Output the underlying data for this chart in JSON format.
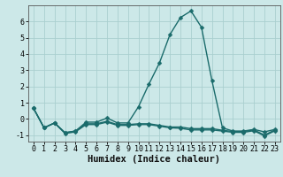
{
  "xlabel": "Humidex (Indice chaleur)",
  "bg_color": "#cce8e8",
  "line_color": "#1a6b6b",
  "grid_color": "#aacfcf",
  "xlim": [
    -0.5,
    23.5
  ],
  "ylim": [
    -1.4,
    7.0
  ],
  "yticks": [
    -1,
    0,
    1,
    2,
    3,
    4,
    5,
    6
  ],
  "xticks": [
    0,
    1,
    2,
    3,
    4,
    5,
    6,
    7,
    8,
    9,
    10,
    11,
    12,
    13,
    14,
    15,
    16,
    17,
    18,
    19,
    20,
    21,
    22,
    23
  ],
  "curves": [
    {
      "x": [
        0,
        1,
        2,
        3,
        4,
        5,
        6,
        7,
        8,
        9,
        10,
        11,
        12,
        13,
        14,
        15,
        16,
        17,
        18,
        19,
        20,
        21,
        22,
        23
      ],
      "y": [
        0.65,
        -0.55,
        -0.25,
        -0.85,
        -0.75,
        -0.2,
        -0.2,
        0.05,
        -0.25,
        -0.25,
        0.75,
        2.15,
        3.45,
        5.2,
        6.25,
        6.65,
        5.65,
        2.35,
        -0.55,
        -0.75,
        -0.75,
        -0.65,
        -0.8,
        -0.65
      ]
    },
    {
      "x": [
        0,
        1,
        2,
        3,
        4,
        5,
        6,
        7,
        8,
        9,
        10,
        11,
        12,
        13,
        14,
        15,
        16,
        17,
        18,
        19,
        20,
        21,
        22,
        23
      ],
      "y": [
        0.65,
        -0.55,
        -0.25,
        -0.85,
        -0.75,
        -0.3,
        -0.3,
        -0.15,
        -0.35,
        -0.35,
        -0.3,
        -0.3,
        -0.4,
        -0.5,
        -0.5,
        -0.6,
        -0.6,
        -0.6,
        -0.7,
        -0.78,
        -0.78,
        -0.68,
        -1.0,
        -0.68
      ]
    },
    {
      "x": [
        0,
        1,
        2,
        3,
        4,
        5,
        6,
        7,
        8,
        9,
        10,
        11,
        12,
        13,
        14,
        15,
        16,
        17,
        18,
        19,
        20,
        21,
        22,
        23
      ],
      "y": [
        0.65,
        -0.55,
        -0.25,
        -0.9,
        -0.8,
        -0.35,
        -0.35,
        -0.2,
        -0.4,
        -0.4,
        -0.35,
        -0.35,
        -0.45,
        -0.55,
        -0.58,
        -0.68,
        -0.68,
        -0.68,
        -0.75,
        -0.83,
        -0.83,
        -0.73,
        -1.05,
        -0.73
      ]
    }
  ],
  "marker_size": 2.5,
  "line_width": 1.0,
  "tick_fontsize": 6,
  "label_fontsize": 7.5
}
